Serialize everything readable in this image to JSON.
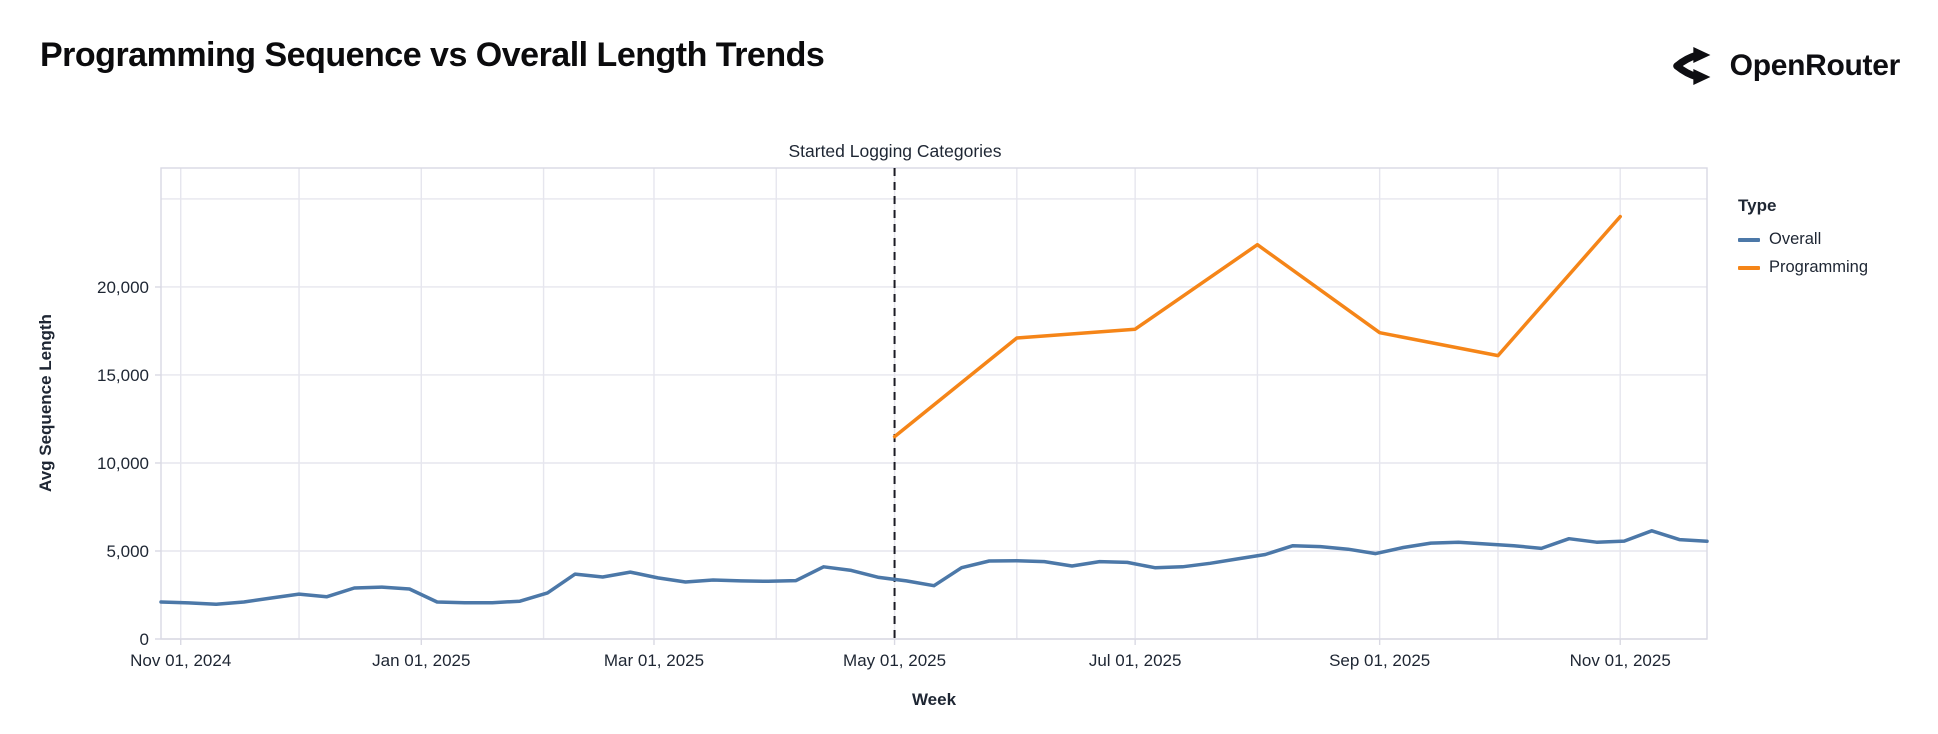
{
  "header": {
    "title": "Programming Sequence vs Overall Length Trends",
    "brand": "OpenRouter"
  },
  "legend": {
    "title": "Type",
    "items": [
      {
        "label": "Overall"
      },
      {
        "label": "Programming"
      }
    ]
  },
  "annotation": {
    "label": "Started Logging Categories",
    "date": "2025-05-01"
  },
  "axes": {
    "x": {
      "title": "Week",
      "ticks": [
        {
          "date": "2024-11-01",
          "label": "Nov 01, 2024"
        },
        {
          "date": "2025-01-01",
          "label": "Jan 01, 2025"
        },
        {
          "date": "2025-03-01",
          "label": "Mar 01, 2025"
        },
        {
          "date": "2025-05-01",
          "label": "May 01, 2025"
        },
        {
          "date": "2025-07-01",
          "label": "Jul 01, 2025"
        },
        {
          "date": "2025-09-01",
          "label": "Sep 01, 2025"
        },
        {
          "date": "2025-11-01",
          "label": "Nov 01, 2025"
        }
      ],
      "gridline_dates": [
        "2024-11-01",
        "2024-12-01",
        "2025-01-01",
        "2025-02-01",
        "2025-03-01",
        "2025-04-01",
        "2025-05-01",
        "2025-06-01",
        "2025-07-01",
        "2025-08-01",
        "2025-09-01",
        "2025-10-01",
        "2025-11-01"
      ]
    },
    "y": {
      "title": "Avg Sequence Length",
      "ticks": [
        {
          "value": 0,
          "label": "0"
        },
        {
          "value": 5000,
          "label": "5,000"
        },
        {
          "value": 10000,
          "label": "10,000"
        },
        {
          "value": 15000,
          "label": "15,000"
        },
        {
          "value": 20000,
          "label": "20,000"
        }
      ],
      "gridline_values": [
        0,
        5000,
        10000,
        15000,
        20000,
        25000
      ]
    }
  },
  "chart_data": {
    "type": "line",
    "title": "Programming Sequence vs Overall Length Trends",
    "xlabel": "Week",
    "ylabel": "Avg Sequence Length",
    "x_domain": [
      "2024-10-27",
      "2025-11-23"
    ],
    "y_domain": [
      0,
      26760
    ],
    "legend_position": "right",
    "grid": true,
    "annotation_line": {
      "date": "2025-05-01",
      "label": "Started Logging Categories"
    },
    "series": [
      {
        "name": "Overall",
        "color": "#4c78a8",
        "cadence": "weekly",
        "points": [
          [
            "2024-10-27",
            2100
          ],
          [
            "2024-11-03",
            2050
          ],
          [
            "2024-11-10",
            1980
          ],
          [
            "2024-11-17",
            2100
          ],
          [
            "2024-11-24",
            2330
          ],
          [
            "2024-12-01",
            2550
          ],
          [
            "2024-12-08",
            2400
          ],
          [
            "2024-12-15",
            2900
          ],
          [
            "2024-12-22",
            2950
          ],
          [
            "2024-12-29",
            2840
          ],
          [
            "2025-01-05",
            2100
          ],
          [
            "2025-01-12",
            2060
          ],
          [
            "2025-01-19",
            2060
          ],
          [
            "2025-01-26",
            2150
          ],
          [
            "2025-02-02",
            2620
          ],
          [
            "2025-02-09",
            3690
          ],
          [
            "2025-02-16",
            3520
          ],
          [
            "2025-02-23",
            3800
          ],
          [
            "2025-03-02",
            3470
          ],
          [
            "2025-03-09",
            3240
          ],
          [
            "2025-03-16",
            3350
          ],
          [
            "2025-03-23",
            3300
          ],
          [
            "2025-03-30",
            3280
          ],
          [
            "2025-04-06",
            3320
          ],
          [
            "2025-04-13",
            4100
          ],
          [
            "2025-04-20",
            3900
          ],
          [
            "2025-04-27",
            3500
          ],
          [
            "2025-05-04",
            3300
          ],
          [
            "2025-05-11",
            3030
          ],
          [
            "2025-05-18",
            4050
          ],
          [
            "2025-05-25",
            4430
          ],
          [
            "2025-06-01",
            4450
          ],
          [
            "2025-06-08",
            4400
          ],
          [
            "2025-06-15",
            4150
          ],
          [
            "2025-06-22",
            4400
          ],
          [
            "2025-06-29",
            4350
          ],
          [
            "2025-07-06",
            4050
          ],
          [
            "2025-07-13",
            4100
          ],
          [
            "2025-07-20",
            4300
          ],
          [
            "2025-07-27",
            4550
          ],
          [
            "2025-08-03",
            4800
          ],
          [
            "2025-08-10",
            5300
          ],
          [
            "2025-08-17",
            5250
          ],
          [
            "2025-08-24",
            5100
          ],
          [
            "2025-08-31",
            4850
          ],
          [
            "2025-09-07",
            5200
          ],
          [
            "2025-09-14",
            5450
          ],
          [
            "2025-09-21",
            5500
          ],
          [
            "2025-09-28",
            5400
          ],
          [
            "2025-10-05",
            5300
          ],
          [
            "2025-10-12",
            5150
          ],
          [
            "2025-10-19",
            5700
          ],
          [
            "2025-10-26",
            5500
          ],
          [
            "2025-11-02",
            5560
          ],
          [
            "2025-11-09",
            6150
          ],
          [
            "2025-11-16",
            5650
          ],
          [
            "2025-11-23",
            5550
          ]
        ]
      },
      {
        "name": "Programming",
        "color": "#f58518",
        "cadence": "monthly",
        "points": [
          [
            "2025-05-01",
            11500
          ],
          [
            "2025-06-01",
            17100
          ],
          [
            "2025-07-01",
            17600
          ],
          [
            "2025-08-01",
            22400
          ],
          [
            "2025-09-01",
            17400
          ],
          [
            "2025-10-01",
            16100
          ],
          [
            "2025-11-01",
            24000
          ]
        ]
      }
    ],
    "style": {
      "grid_color": "#e6e6ee",
      "border_color": "#d9d9e3",
      "tick_text_color": "#1e2633",
      "annotation_line_color": "#1b1b24",
      "line_width": 3.5
    }
  }
}
